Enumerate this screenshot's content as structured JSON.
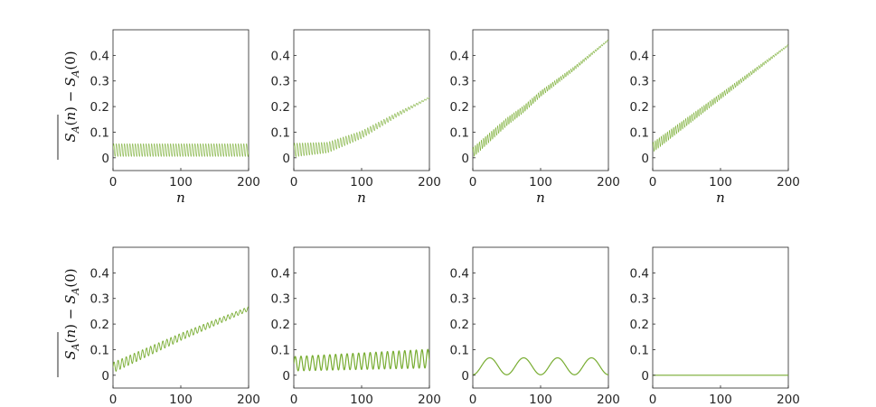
{
  "chart_data": {
    "type": "line",
    "layout": "2x4 grid of subplots",
    "series_color": "#77AC30",
    "shared_axes": {
      "xlabel": "n",
      "ylabel": "S_A(n) − S_A(0)",
      "ylabel_parts": {
        "s1": "S",
        "sub1": "A",
        "arg1": "(",
        "n": "n",
        "close1": ")",
        "minus": " − ",
        "s2": "S",
        "sub2": "A",
        "arg2": "(0)"
      },
      "xlim": [
        0,
        200
      ],
      "ylim": [
        -0.05,
        0.5
      ],
      "xticks": [
        0,
        100,
        200
      ],
      "xtick_labels": [
        "0",
        "100",
        "200"
      ],
      "yticks": [
        0,
        0.1,
        0.2,
        0.3,
        0.4
      ],
      "ytick_labels": [
        "0",
        "0.1",
        "0.2",
        "0.3",
        "0.4"
      ],
      "grid": false
    },
    "panels": [
      {
        "row": 1,
        "col": 1,
        "has_ylabel": true,
        "trend": [
          [
            0,
            0.03
          ],
          [
            100,
            0.03
          ],
          [
            200,
            0.03
          ]
        ],
        "osc_amplitude": 0.025,
        "osc_period": 4,
        "osc_amp_decay": 0.0,
        "desc_style": "fast"
      },
      {
        "row": 1,
        "col": 2,
        "has_ylabel": false,
        "trend": [
          [
            0,
            0.03
          ],
          [
            50,
            0.04
          ],
          [
            100,
            0.09
          ],
          [
            150,
            0.165
          ],
          [
            200,
            0.235
          ]
        ],
        "osc_amplitude": 0.027,
        "osc_period": 4,
        "osc_amp_decay": 0.9,
        "desc_style": "fast"
      },
      {
        "row": 1,
        "col": 3,
        "has_ylabel": false,
        "trend": [
          [
            0,
            0.02
          ],
          [
            25,
            0.08
          ],
          [
            50,
            0.14
          ],
          [
            75,
            0.19
          ],
          [
            100,
            0.25
          ],
          [
            150,
            0.35
          ],
          [
            200,
            0.46
          ]
        ],
        "osc_amplitude": 0.02,
        "osc_period": 3,
        "osc_amp_decay": 0.85,
        "desc_style": "fast"
      },
      {
        "row": 1,
        "col": 4,
        "has_ylabel": false,
        "trend": [
          [
            0,
            0.04
          ],
          [
            100,
            0.24
          ],
          [
            200,
            0.44
          ]
        ],
        "osc_amplitude": 0.02,
        "osc_period": 3,
        "osc_amp_decay": 0.85,
        "desc_style": "fast"
      },
      {
        "row": 2,
        "col": 1,
        "has_ylabel": true,
        "trend": [
          [
            0,
            0.03
          ],
          [
            100,
            0.15
          ],
          [
            200,
            0.26
          ]
        ],
        "osc_amplitude": 0.02,
        "osc_period": 6,
        "osc_amp_decay": 0.6,
        "desc_style": "medium"
      },
      {
        "row": 2,
        "col": 2,
        "has_ylabel": false,
        "trend": [
          [
            0,
            0.045
          ],
          [
            200,
            0.065
          ]
        ],
        "osc_amplitude": 0.028,
        "osc_period": 8.5,
        "osc_amp_decay": -0.3,
        "desc_style": "slow"
      },
      {
        "row": 2,
        "col": 3,
        "has_ylabel": false,
        "trend": [
          [
            0,
            0.035
          ],
          [
            200,
            0.035
          ]
        ],
        "osc_amplitude": 0.033,
        "osc_period": 50,
        "osc_amp_decay": 0.0,
        "desc_style": "smooth"
      },
      {
        "row": 2,
        "col": 4,
        "has_ylabel": false,
        "trend": [
          [
            0,
            0.0
          ],
          [
            200,
            0.0
          ]
        ],
        "osc_amplitude": 0.0,
        "osc_period": 50,
        "osc_amp_decay": 0.0,
        "desc_style": "flat"
      }
    ]
  }
}
